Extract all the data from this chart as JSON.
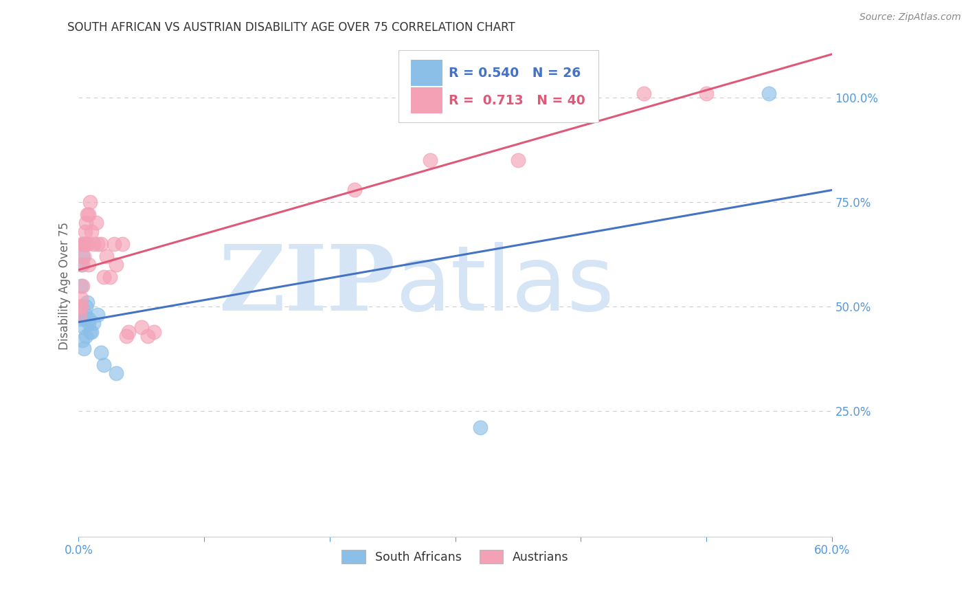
{
  "title": "SOUTH AFRICAN VS AUSTRIAN DISABILITY AGE OVER 75 CORRELATION CHART",
  "source": "Source: ZipAtlas.com",
  "ylabel": "Disability Age Over 75",
  "xlim": [
    0.0,
    0.6
  ],
  "ylim": [
    -0.05,
    1.15
  ],
  "yticks": [
    0.25,
    0.5,
    0.75,
    1.0
  ],
  "ytick_labels": [
    "25.0%",
    "50.0%",
    "75.0%",
    "100.0%"
  ],
  "blue_R": 0.54,
  "blue_N": 26,
  "pink_R": 0.713,
  "pink_N": 40,
  "blue_color": "#8BBFE8",
  "pink_color": "#F4A0B5",
  "blue_line_color": "#4472C4",
  "pink_line_color": "#E05878",
  "watermark_zip": "ZIP",
  "watermark_atlas": "atlas",
  "watermark_color": "#D5E5F5",
  "bg_color": "#FFFFFF",
  "title_color": "#333333",
  "axis_color": "#5599DD",
  "tick_color": "#5599DD",
  "grid_color": "#CCCCCC",
  "blue_points_x": [
    0.001,
    0.001,
    0.002,
    0.002,
    0.002,
    0.003,
    0.003,
    0.003,
    0.004,
    0.004,
    0.005,
    0.005,
    0.006,
    0.006,
    0.007,
    0.008,
    0.008,
    0.009,
    0.01,
    0.012,
    0.015,
    0.018,
    0.02,
    0.03,
    0.32,
    0.55
  ],
  "blue_points_y": [
    0.48,
    0.47,
    0.5,
    0.55,
    0.6,
    0.62,
    0.65,
    0.42,
    0.45,
    0.4,
    0.47,
    0.48,
    0.5,
    0.43,
    0.51,
    0.47,
    0.46,
    0.44,
    0.44,
    0.46,
    0.48,
    0.39,
    0.36,
    0.34,
    0.21,
    1.01
  ],
  "pink_points_x": [
    0.001,
    0.001,
    0.002,
    0.002,
    0.003,
    0.003,
    0.003,
    0.004,
    0.004,
    0.005,
    0.005,
    0.006,
    0.006,
    0.007,
    0.007,
    0.008,
    0.008,
    0.009,
    0.01,
    0.012,
    0.014,
    0.015,
    0.018,
    0.02,
    0.022,
    0.025,
    0.028,
    0.03,
    0.035,
    0.038,
    0.04,
    0.05,
    0.055,
    0.06,
    0.22,
    0.28,
    0.35,
    0.4,
    0.45,
    0.5
  ],
  "pink_points_y": [
    0.48,
    0.5,
    0.5,
    0.52,
    0.55,
    0.6,
    0.65,
    0.62,
    0.65,
    0.65,
    0.68,
    0.65,
    0.7,
    0.65,
    0.72,
    0.6,
    0.72,
    0.75,
    0.68,
    0.65,
    0.7,
    0.65,
    0.65,
    0.57,
    0.62,
    0.57,
    0.65,
    0.6,
    0.65,
    0.43,
    0.44,
    0.45,
    0.43,
    0.44,
    0.78,
    0.85,
    0.85,
    1.01,
    1.01,
    1.01
  ]
}
